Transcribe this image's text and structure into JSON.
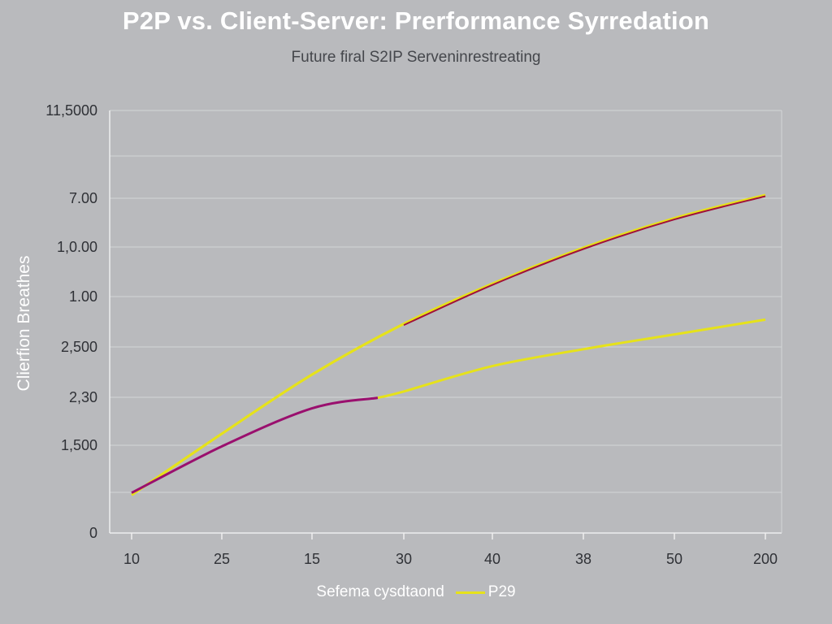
{
  "chart_data": {
    "type": "line",
    "title": "P2P vs. Client-Server: Prerformance Syrredation",
    "subtitle": "Future firal S2IP Serveninrestreating",
    "ylabel": "Clierfion Breathes",
    "xlabel": "",
    "x_tick_labels": [
      "10",
      "25",
      "15",
      "30",
      "40",
      "38",
      "50",
      "200"
    ],
    "y_tick_labels": [
      "0",
      "1,500",
      "2,30",
      "2,500",
      "1.00",
      "1,0.00",
      "7.00",
      "11,5000"
    ],
    "grid": true,
    "legend": {
      "placement": "bottom",
      "entries": [
        {
          "label": "Sefema cysdtaond",
          "color": ""
        },
        {
          "label": "P29",
          "color": "#e6e21a"
        }
      ]
    },
    "series": [
      {
        "color_primary": "#9a0f6e",
        "color_secondary": "#e6e21a",
        "note_position_index": [
          0,
          1,
          2,
          3,
          4,
          5,
          6,
          7
        ],
        "values": [
          0.95,
          2.05,
          2.95,
          3.35,
          3.95,
          4.35,
          4.7,
          5.05
        ],
        "split_after_index": 2.6
      },
      {
        "color": "#e6e21a",
        "values": [
          0.9,
          2.35,
          3.75,
          4.95,
          5.9,
          6.75,
          7.45,
          8.0
        ],
        "overlay_color": "#a0113a"
      }
    ]
  }
}
